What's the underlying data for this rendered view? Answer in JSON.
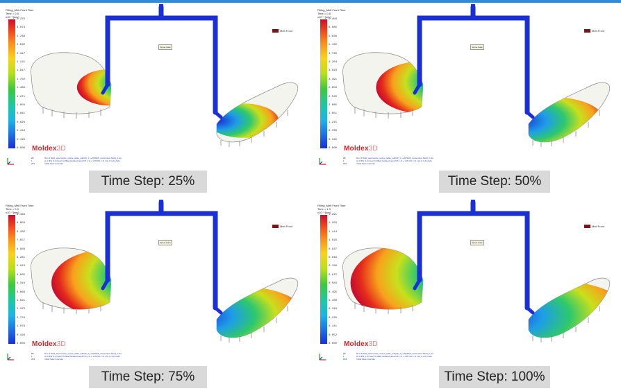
{
  "panels": [
    {
      "caption": "Time Step: 25%",
      "header": [
        "Filling_Melt Front Time",
        "Time = 0.5",
        "x10⁻¹ [sec]"
      ],
      "ticks": [
        "3.270",
        "3.073",
        "2.786",
        "2.562",
        "2.347",
        "2.131",
        "1.917",
        "1.702",
        "1.486",
        "1.271",
        "1.056",
        "0.841",
        "0.626",
        "0.410",
        "0.195",
        "0.000"
      ],
      "legend_label": "Melt Front",
      "gate_label": "Sprue Gate",
      "logo_main": "Moldex",
      "logo_suffix": "3D",
      "footer_lines": [
        "Run 3 Mold_automotive_recipe_table_sub(00_1_Left)/SRA_Automotive Mold_2.pro",
        "at 1 0Pa (1.04 sec) Unfilled Isolated (area 5.5 (-1) + 1.95 (10 x 2) ms) (1 ref) Undo",
        "Initial Save Intervals"
      ],
      "footer_left": [
        "kB",
        "1",
        "203"
      ]
    },
    {
      "caption": "Time Step: 50%",
      "header": [
        "Filling_Melt Front Time",
        "Time = 0.8",
        "x10⁻¹ [sec]"
      ],
      "ticks": [
        "6.456",
        "6.085",
        "5.630",
        "5.195",
        "4.729",
        "4.264",
        "3.823",
        "3.391",
        "2.956",
        "2.520",
        "2.085",
        "1.651",
        "1.215",
        "0.780",
        "0.345",
        "0.000"
      ],
      "legend_label": "Melt Front",
      "gate_label": "Sprue Gate",
      "logo_main": "Moldex",
      "logo_suffix": "3D",
      "footer_lines": [
        "Run 3 Mold_automotive_recipe_table_sub(00_1_Left)/SRA_Automotive Mold_2.pro",
        "at 1 0Pa (1.04 sec) Unfilled Isolated (area 5.5 (-1) + 1.95 (10 x 2) ms) (1 ref) Undo",
        "Initial Save Intervals"
      ],
      "footer_left": [
        "kB",
        "1",
        "203"
      ]
    },
    {
      "caption": "Time Step: 75%",
      "header": [
        "Filling_Melt Front Time",
        "Time = 0.9",
        "x10⁻¹ [sec]"
      ],
      "ticks": [
        "9.468",
        "8.858",
        "8.205",
        "7.557",
        "6.908",
        "6.261",
        "5.613",
        "4.965",
        "4.316",
        "3.669",
        "3.021",
        "2.373",
        "1.724",
        "1.076",
        "0.428",
        "0.000"
      ],
      "legend_label": "Melt Front",
      "gate_label": "Sprue Gate",
      "logo_main": "Moldex",
      "logo_suffix": "3D",
      "footer_lines": [
        "Run 3 Mold_automotive_recipe_table_sub(00_1_Left)/SRA_Automotive Mold_2.pro",
        "at 1 0Pa (1.04 sec) Unfilled Isolated (area 5.5 (-1) + 1.95 (10 x 2) ms) (1 ref) Undo",
        "Initial Save Intervals"
      ],
      "footer_left": [
        "kB",
        "1",
        "203"
      ]
    },
    {
      "caption": "Time Step: 100%",
      "header": [
        "Filling_Melt Front Time",
        "Time = 1.3",
        "x10⁻¹ [sec]"
      ],
      "ticks": [
        "1.291",
        "1.203",
        "1.114",
        "1.026",
        "0.937",
        "0.849",
        "0.760",
        "0.672",
        "0.583",
        "0.495",
        "0.406",
        "0.318",
        "0.229",
        "0.141",
        "0.052",
        "0.000"
      ],
      "legend_label": "Melt Front",
      "gate_label": "Sprue Gate",
      "logo_main": "Moldex",
      "logo_suffix": "3D",
      "footer_lines": [
        "Run 3 Mold_automotive_recipe_table_sub(00_1_Left)/SRA_Automotive Mold_2.pro",
        "at 1 0Pa (1.04 sec) Unfilled Isolated (area 5.5 (-1) + 1.95 (10 x 2) ms) (1 ref) Undo",
        "Initial Save Intervals"
      ],
      "footer_left": [
        "kB",
        "1",
        "203"
      ]
    }
  ],
  "fill_levels": [
    0.25,
    0.5,
    0.75,
    1.0
  ],
  "colors": {
    "runner": "#1a2fd6",
    "accent_bar": "#2e8bd6",
    "caption_bg": "#d9d9d9",
    "logo_red": "#d4262a"
  }
}
